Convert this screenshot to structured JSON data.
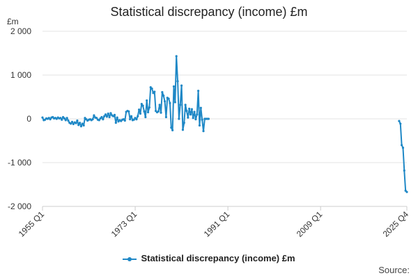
{
  "chart_data": {
    "type": "line",
    "title": "Statistical discrepancy (income) £m",
    "y_unit": "£m",
    "ylim": [
      -2000,
      2000
    ],
    "yticks": [
      2000,
      1000,
      0,
      -1000,
      -2000
    ],
    "ytick_labels": [
      "2 000",
      "1 000",
      "0",
      "-1 000",
      "-2 000"
    ],
    "xticks": [
      1955,
      1973,
      1991,
      2009,
      2025.75
    ],
    "xtick_labels": [
      "1955 Q1",
      "1973 Q1",
      "1991 Q1",
      "2009 Q1",
      "2025 Q4"
    ],
    "xlim": [
      1955,
      2025.75
    ],
    "grid": true,
    "legend": "bottom",
    "color": "#1f88c6",
    "series": [
      {
        "name": "Statistical discrepancy (income) £m",
        "segments": [
          [
            [
              1955.0,
              30
            ],
            [
              1955.25,
              -30
            ],
            [
              1955.5,
              -20
            ],
            [
              1955.75,
              10
            ],
            [
              1956.0,
              0
            ],
            [
              1956.25,
              20
            ],
            [
              1956.5,
              -10
            ],
            [
              1956.75,
              30
            ],
            [
              1957.0,
              40
            ],
            [
              1957.25,
              10
            ],
            [
              1957.5,
              20
            ],
            [
              1957.75,
              0
            ],
            [
              1958.0,
              30
            ],
            [
              1958.25,
              10
            ],
            [
              1958.5,
              20
            ],
            [
              1958.75,
              -20
            ],
            [
              1959.0,
              40
            ],
            [
              1959.25,
              10
            ],
            [
              1959.5,
              -30
            ],
            [
              1959.75,
              20
            ],
            [
              1960.0,
              -40
            ],
            [
              1960.25,
              -90
            ],
            [
              1960.5,
              -110
            ],
            [
              1960.75,
              -70
            ],
            [
              1961.0,
              -120
            ],
            [
              1961.25,
              -80
            ],
            [
              1961.5,
              -100
            ],
            [
              1961.75,
              -40
            ],
            [
              1962.0,
              -140
            ],
            [
              1962.25,
              -90
            ],
            [
              1962.5,
              -170
            ],
            [
              1962.75,
              -110
            ],
            [
              1963.0,
              -150
            ],
            [
              1963.25,
              20
            ],
            [
              1963.5,
              -10
            ],
            [
              1963.75,
              -40
            ],
            [
              1964.0,
              -20
            ],
            [
              1964.25,
              -10
            ],
            [
              1964.5,
              -30
            ],
            [
              1964.75,
              -10
            ],
            [
              1965.0,
              80
            ],
            [
              1965.25,
              30
            ],
            [
              1965.5,
              20
            ],
            [
              1965.75,
              -20
            ],
            [
              1966.0,
              -30
            ],
            [
              1966.25,
              10
            ],
            [
              1966.5,
              40
            ],
            [
              1966.75,
              -10
            ],
            [
              1967.0,
              60
            ],
            [
              1967.25,
              100
            ],
            [
              1967.5,
              50
            ],
            [
              1967.75,
              120
            ],
            [
              1968.0,
              40
            ],
            [
              1968.25,
              130
            ],
            [
              1968.5,
              80
            ],
            [
              1968.75,
              60
            ],
            [
              1969.0,
              90
            ],
            [
              1969.25,
              -90
            ],
            [
              1969.5,
              30
            ],
            [
              1969.75,
              -60
            ],
            [
              1970.0,
              -30
            ],
            [
              1970.25,
              -50
            ],
            [
              1970.5,
              -20
            ],
            [
              1970.75,
              -10
            ],
            [
              1971.0,
              -40
            ],
            [
              1971.25,
              160
            ],
            [
              1971.5,
              180
            ],
            [
              1971.75,
              170
            ],
            [
              1972.0,
              -10
            ],
            [
              1972.25,
              60
            ],
            [
              1972.5,
              -30
            ],
            [
              1972.75,
              -20
            ],
            [
              1973.0,
              20
            ],
            [
              1973.25,
              -10
            ],
            [
              1973.5,
              60
            ],
            [
              1973.75,
              210
            ],
            [
              1974.0,
              120
            ],
            [
              1974.25,
              340
            ],
            [
              1974.5,
              300
            ],
            [
              1974.75,
              170
            ],
            [
              1975.0,
              40
            ],
            [
              1975.25,
              420
            ],
            [
              1975.5,
              150
            ],
            [
              1975.75,
              260
            ],
            [
              1976.0,
              720
            ],
            [
              1976.25,
              690
            ],
            [
              1976.5,
              590
            ],
            [
              1976.75,
              620
            ],
            [
              1977.0,
              180
            ],
            [
              1977.25,
              150
            ],
            [
              1977.5,
              170
            ],
            [
              1977.75,
              320
            ],
            [
              1978.0,
              140
            ],
            [
              1978.25,
              610
            ],
            [
              1978.5,
              530
            ],
            [
              1978.75,
              400
            ],
            [
              1979.0,
              40
            ],
            [
              1979.25,
              480
            ],
            [
              1979.5,
              460
            ],
            [
              1979.75,
              360
            ],
            [
              1980.0,
              -200
            ],
            [
              1980.25,
              -260
            ],
            [
              1980.5,
              740
            ],
            [
              1980.75,
              380
            ],
            [
              1981.0,
              1430
            ],
            [
              1981.25,
              860
            ],
            [
              1981.5,
              0
            ],
            [
              1981.75,
              320
            ],
            [
              1982.0,
              760
            ],
            [
              1982.25,
              -250
            ],
            [
              1982.5,
              -90
            ],
            [
              1982.75,
              320
            ],
            [
              1983.0,
              180
            ],
            [
              1983.25,
              30
            ],
            [
              1983.5,
              230
            ],
            [
              1983.75,
              100
            ],
            [
              1984.0,
              220
            ],
            [
              1984.25,
              20
            ],
            [
              1984.5,
              160
            ],
            [
              1984.75,
              -10
            ],
            [
              1985.0,
              100
            ],
            [
              1985.25,
              640
            ],
            [
              1985.5,
              -150
            ],
            [
              1985.75,
              250
            ],
            [
              1986.0,
              -20
            ],
            [
              1986.25,
              -280
            ],
            [
              1986.5,
              0
            ],
            [
              1986.75,
              0
            ],
            [
              1987.0,
              0
            ],
            [
              1987.25,
              0
            ]
          ],
          [
            [
              2024.25,
              -50
            ],
            [
              2024.5,
              -110
            ],
            [
              2024.75,
              -600
            ],
            [
              2025.0,
              -660
            ],
            [
              2025.25,
              -1180
            ],
            [
              2025.5,
              -1640
            ],
            [
              2025.75,
              -1670
            ]
          ]
        ]
      }
    ],
    "source_label": "Source:"
  }
}
